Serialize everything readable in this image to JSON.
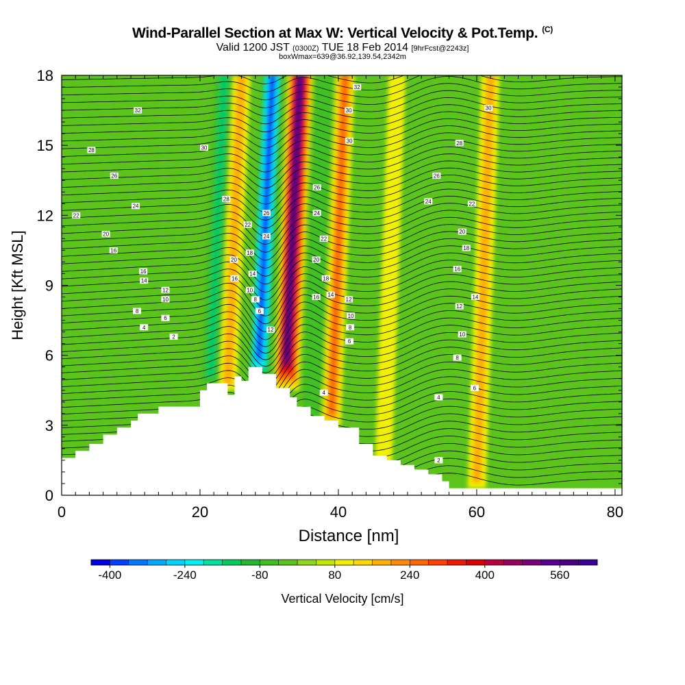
{
  "title": {
    "main": "Wind-Parallel Section at Max W: Vertical Velocity & Pot.Temp.",
    "copyright": "(C)",
    "valid_a": "Valid 1200 JST",
    "valid_b": "(0300Z)",
    "valid_c": "TUE 18 Feb 2014",
    "valid_d": "[9hrFcst@2243z]",
    "box": "boxWmax=639@36.92,139.54,2342m"
  },
  "colors": {
    "terrain": "#ffffff",
    "background": "#5cc31c",
    "contour": "#000000"
  },
  "chart_data": {
    "type": "heatmap",
    "xlabel": "Distance [nm]",
    "ylabel": "Height [Kft MSL]",
    "xlim": [
      0,
      81
    ],
    "ylim": [
      0,
      18
    ],
    "xticks": [
      0,
      20,
      40,
      60,
      80
    ],
    "ytick_labels": [
      "0",
      "3",
      "6",
      "9",
      "12",
      "15",
      "18"
    ],
    "ytick_values": [
      0,
      3,
      6,
      9,
      12,
      15,
      18
    ],
    "colorbar": {
      "label": "Vertical Velocity [cm/s]",
      "min": -440,
      "max": 640,
      "step": 40,
      "tick_labels": [
        "-400",
        "-240",
        "-80",
        "80",
        "240",
        "400",
        "560"
      ],
      "tick_values": [
        -400,
        -240,
        -80,
        80,
        240,
        400,
        560
      ],
      "colors": [
        "#0000e0",
        "#0040ff",
        "#0078ff",
        "#00aaff",
        "#00d4ff",
        "#00f0f0",
        "#00e0a0",
        "#00cc60",
        "#20b830",
        "#40c020",
        "#5cc31c",
        "#90d820",
        "#c0e800",
        "#f0f000",
        "#ffd800",
        "#ffb000",
        "#ff8c00",
        "#ff6800",
        "#ff4000",
        "#f01800",
        "#d80000",
        "#b80040",
        "#980060",
        "#780078",
        "#5a0090",
        "#4b0082",
        "#3c0096"
      ]
    },
    "terrain_height_kft": [
      [
        0,
        1.6
      ],
      [
        2,
        1.9
      ],
      [
        4,
        2.2
      ],
      [
        6,
        2.6
      ],
      [
        8,
        2.9
      ],
      [
        10,
        3.2
      ],
      [
        11,
        3.5
      ],
      [
        14,
        3.8
      ],
      [
        20,
        4.5
      ],
      [
        21,
        4.8
      ],
      [
        24,
        4.3
      ],
      [
        25,
        5.1
      ],
      [
        26,
        4.9
      ],
      [
        27,
        5.5
      ],
      [
        29,
        5.2
      ],
      [
        31,
        4.6
      ],
      [
        33,
        4.2
      ],
      [
        34,
        3.8
      ],
      [
        36,
        3.4
      ],
      [
        38,
        3.2
      ],
      [
        40,
        2.9
      ],
      [
        43,
        2.2
      ],
      [
        45,
        1.7
      ],
      [
        47,
        1.5
      ],
      [
        49,
        1.3
      ],
      [
        51,
        1.1
      ],
      [
        53,
        0.9
      ],
      [
        55,
        0.6
      ],
      [
        56,
        0.3
      ],
      [
        81,
        0.3
      ]
    ],
    "velocity_features": [
      {
        "name": "west updraft",
        "x": 25,
        "ymin": 4.5,
        "ymax": 18,
        "value": 200
      },
      {
        "name": "west downdraft",
        "x": 22.5,
        "ymin": 4.8,
        "ymax": 18,
        "value": -160
      },
      {
        "name": "main downdraft",
        "x": 29.5,
        "ymin": 5,
        "ymax": 18,
        "value": -400
      },
      {
        "name": "main updraft",
        "x": 33.5,
        "ymin": 4.5,
        "ymax": 18,
        "value": 600
      },
      {
        "name": "east updraft",
        "x": 40,
        "ymin": 3,
        "ymax": 18,
        "value": 240
      },
      {
        "name": "east downdraft",
        "x": 37,
        "ymin": 3,
        "ymax": 18,
        "value": -120
      },
      {
        "name": "lee updraft",
        "x": 47.5,
        "ymin": 1.2,
        "ymax": 18,
        "value": 120
      },
      {
        "name": "far lee updraft",
        "x": 61,
        "ymin": 0.3,
        "ymax": 18,
        "value": 200
      }
    ],
    "contour_labels": [
      {
        "text": "32",
        "x": 11,
        "y": 16.5
      },
      {
        "text": "28",
        "x": 4.3,
        "y": 14.8
      },
      {
        "text": "26",
        "x": 7.6,
        "y": 13.7
      },
      {
        "text": "24",
        "x": 10.7,
        "y": 12.4
      },
      {
        "text": "22",
        "x": 2.1,
        "y": 12
      },
      {
        "text": "20",
        "x": 6.4,
        "y": 11.2
      },
      {
        "text": "16",
        "x": 7.5,
        "y": 10.5
      },
      {
        "text": "16",
        "x": 11.8,
        "y": 9.6
      },
      {
        "text": "14",
        "x": 11.9,
        "y": 9.2
      },
      {
        "text": "12",
        "x": 15,
        "y": 8.8
      },
      {
        "text": "10",
        "x": 15,
        "y": 8.4
      },
      {
        "text": "8",
        "x": 10.9,
        "y": 7.9
      },
      {
        "text": "6",
        "x": 15,
        "y": 7.6
      },
      {
        "text": "4",
        "x": 11.9,
        "y": 7.2
      },
      {
        "text": "2",
        "x": 16.2,
        "y": 6.8
      },
      {
        "text": "30",
        "x": 20.6,
        "y": 14.9
      },
      {
        "text": "28",
        "x": 23.8,
        "y": 12.7
      },
      {
        "text": "22",
        "x": 26.9,
        "y": 11.6
      },
      {
        "text": "26",
        "x": 29.6,
        "y": 12.1
      },
      {
        "text": "24",
        "x": 29.6,
        "y": 11.1
      },
      {
        "text": "20",
        "x": 24.9,
        "y": 10.1
      },
      {
        "text": "18",
        "x": 27.2,
        "y": 10.4
      },
      {
        "text": "16",
        "x": 25,
        "y": 9.3
      },
      {
        "text": "14",
        "x": 27.6,
        "y": 9.5
      },
      {
        "text": "10",
        "x": 27.2,
        "y": 8.8
      },
      {
        "text": "8",
        "x": 28,
        "y": 8.4
      },
      {
        "text": "6",
        "x": 28.6,
        "y": 7.9
      },
      {
        "text": "12",
        "x": 30.2,
        "y": 7.1
      },
      {
        "text": "32",
        "x": 42.7,
        "y": 17.5
      },
      {
        "text": "30",
        "x": 41.5,
        "y": 16.5
      },
      {
        "text": "30",
        "x": 41.6,
        "y": 15.2
      },
      {
        "text": "26",
        "x": 36.9,
        "y": 13.2
      },
      {
        "text": "24",
        "x": 36.9,
        "y": 12.1
      },
      {
        "text": "22",
        "x": 37.9,
        "y": 11
      },
      {
        "text": "20",
        "x": 36.8,
        "y": 10.1
      },
      {
        "text": "18",
        "x": 38.2,
        "y": 9.3
      },
      {
        "text": "16",
        "x": 36.8,
        "y": 8.5
      },
      {
        "text": "14",
        "x": 38.9,
        "y": 8.6
      },
      {
        "text": "12",
        "x": 41.5,
        "y": 8.4
      },
      {
        "text": "10",
        "x": 41.8,
        "y": 7.7
      },
      {
        "text": "8",
        "x": 41.7,
        "y": 7.2
      },
      {
        "text": "6",
        "x": 41.6,
        "y": 6.6
      },
      {
        "text": "4",
        "x": 37.9,
        "y": 4.4
      },
      {
        "text": "30",
        "x": 61.7,
        "y": 16.6
      },
      {
        "text": "28",
        "x": 57.5,
        "y": 15.1
      },
      {
        "text": "26",
        "x": 54.2,
        "y": 13.7
      },
      {
        "text": "24",
        "x": 53,
        "y": 12.6
      },
      {
        "text": "22",
        "x": 59.3,
        "y": 12.5
      },
      {
        "text": "20",
        "x": 57.9,
        "y": 11.3
      },
      {
        "text": "18",
        "x": 58.5,
        "y": 10.6
      },
      {
        "text": "16",
        "x": 57.2,
        "y": 9.7
      },
      {
        "text": "14",
        "x": 59.8,
        "y": 8.5
      },
      {
        "text": "12",
        "x": 57.5,
        "y": 8.1
      },
      {
        "text": "10",
        "x": 57.9,
        "y": 6.9
      },
      {
        "text": "8",
        "x": 57.2,
        "y": 5.9
      },
      {
        "text": "4",
        "x": 54.5,
        "y": 4.2
      },
      {
        "text": "6",
        "x": 59.7,
        "y": 4.6
      },
      {
        "text": "2",
        "x": 54.5,
        "y": 1.5
      }
    ]
  }
}
